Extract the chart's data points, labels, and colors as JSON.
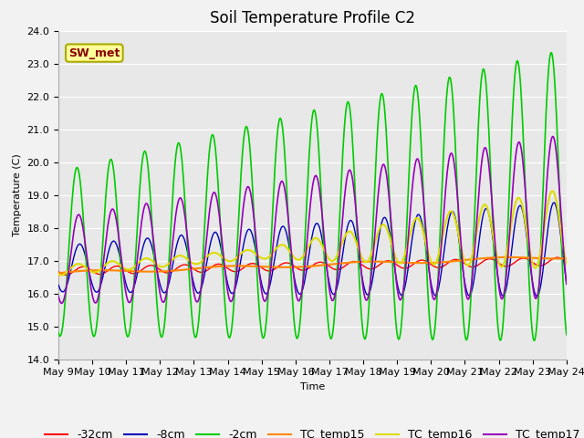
{
  "title": "Soil Temperature Profile C2",
  "xlabel": "Time",
  "ylabel": "Temperature (C)",
  "ylim": [
    14.0,
    24.0
  ],
  "yticks": [
    14.0,
    15.0,
    16.0,
    17.0,
    18.0,
    19.0,
    20.0,
    21.0,
    22.0,
    23.0,
    24.0
  ],
  "xtick_labels": [
    "May 9",
    "May 10",
    "May 11",
    "May 12",
    "May 13",
    "May 14",
    "May 15",
    "May 16",
    "May 17",
    "May 18",
    "May 19",
    "May 20",
    "May 21",
    "May 22",
    "May 23",
    "May 24"
  ],
  "line_colors": {
    "neg32cm": "#ff0000",
    "neg8cm": "#0000bb",
    "neg2cm": "#00cc00",
    "TC_temp15": "#ff8800",
    "TC_temp16": "#dddd00",
    "TC_temp17": "#9900bb"
  },
  "legend_labels": [
    "-32cm",
    "-8cm",
    "-2cm",
    "TC_temp15",
    "TC_temp16",
    "TC_temp17"
  ],
  "annotation_text": "SW_met",
  "annotation_color": "#880000",
  "annotation_bg": "#ffff99",
  "annotation_edge": "#aaaa00",
  "bg_color": "#e8e8e8",
  "fig_color": "#f2f2f2",
  "grid_color": "#ffffff",
  "title_fontsize": 12,
  "axis_fontsize": 8,
  "legend_fontsize": 9
}
